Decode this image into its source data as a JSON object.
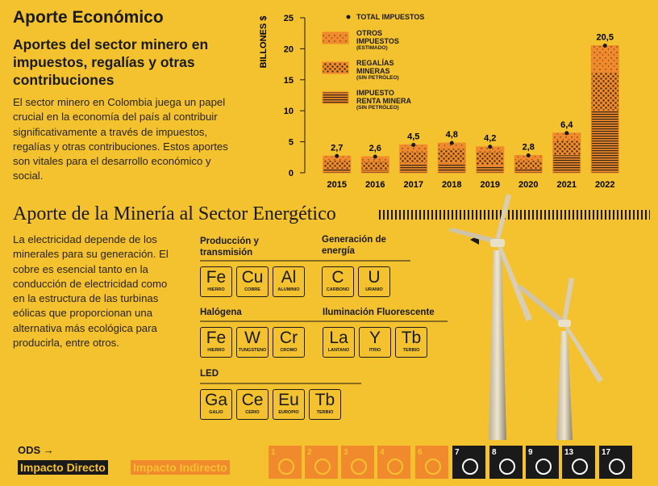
{
  "economic": {
    "title": "Aporte Económico",
    "subtitle": "Aportes del sector minero en impuestos, regalías y otras contribuciones",
    "text": "El sector minero en Colombia juega un papel crucial en la economía del país al contribuir significativamente a través de impuestos, regalías y otras contribuciones. Estos aportes son vitales para el desarrollo económico y social."
  },
  "chart_data": {
    "type": "stacked-bar",
    "y_label": "BILLONES $",
    "categories": [
      "2015",
      "2016",
      "2017",
      "2018",
      "2019",
      "2020",
      "2021",
      "2022"
    ],
    "ylim": [
      0,
      25
    ],
    "yticks": [
      0,
      5,
      10,
      15,
      20,
      25
    ],
    "series": [
      {
        "name": "IMPUESTO RENTA MINERA",
        "note": "(SIN PETRÓLEO)",
        "color": "#f08a2c",
        "pattern": "hatch",
        "values": [
          0.6,
          0.5,
          1.5,
          1.6,
          1.2,
          0.6,
          2.9,
          10.0
        ]
      },
      {
        "name": "REGALÍAS MINERAS",
        "note": "(SIN PETRÓLEO)",
        "color": "#f08a2c",
        "pattern": "dots",
        "values": [
          1.4,
          1.4,
          2.0,
          2.3,
          2.3,
          1.4,
          2.3,
          6.3
        ]
      },
      {
        "name": "OTROS IMPUESTOS",
        "note": "(ESTIMADO)",
        "color": "#f08a2c",
        "pattern": "sparse",
        "values": [
          0.7,
          0.7,
          1.0,
          0.9,
          0.7,
          0.8,
          1.2,
          4.2
        ]
      }
    ],
    "totals": {
      "name": "TOTAL IMPUESTOS",
      "color": "#1a1a1a",
      "values": [
        2.7,
        2.6,
        4.5,
        4.8,
        4.2,
        2.8,
        6.4,
        20.5
      ],
      "value_labels": [
        "2,7",
        "2,6",
        "4,5",
        "4,8",
        "4,2",
        "2,8",
        "6,4",
        "20,5"
      ]
    }
  },
  "energy": {
    "title": "Aporte de la Minería al Sector Energético",
    "text": "La electricidad depende de los minerales para su generación. El cobre es esencial tanto en la conducción de electricidad como en la estructura de las turbinas eólicas que proporcionan una alternativa más ecológica para producirla, entre otros.",
    "groups": [
      {
        "title": "Producción y transmisión",
        "elements": [
          {
            "symbol": "Fe",
            "name": "HIERRO"
          },
          {
            "symbol": "Cu",
            "name": "COBRE"
          },
          {
            "symbol": "Al",
            "name": "ALUMINIO"
          }
        ]
      },
      {
        "title": "Generación de energía",
        "elements": [
          {
            "symbol": "C",
            "name": "CARBONO"
          },
          {
            "symbol": "U",
            "name": "URANIO"
          }
        ]
      },
      {
        "title": "Halógena",
        "elements": [
          {
            "symbol": "Fe",
            "name": "HIERRO"
          },
          {
            "symbol": "W",
            "name": "TUNGSTENO"
          },
          {
            "symbol": "Cr",
            "name": "CROMO"
          }
        ]
      },
      {
        "title": "Iluminación Fluorescente",
        "elements": [
          {
            "symbol": "La",
            "name": "LANTANO"
          },
          {
            "symbol": "Y",
            "name": "ITRIO"
          },
          {
            "symbol": "Tb",
            "name": "TERBIO"
          }
        ]
      },
      {
        "title": "LED",
        "elements": [
          {
            "symbol": "Ga",
            "name": "GALIO"
          },
          {
            "symbol": "Ce",
            "name": "CERIO"
          },
          {
            "symbol": "Eu",
            "name": "EUROPIO"
          },
          {
            "symbol": "Tb",
            "name": "TERBIO"
          }
        ]
      }
    ]
  },
  "ods": {
    "label": "ODS →",
    "direct": "Impacto Directo",
    "indirect": "Impacto Indirecto",
    "goals": [
      {
        "number": 1,
        "impact": "indirect"
      },
      {
        "number": 2,
        "impact": "indirect"
      },
      {
        "number": 3,
        "impact": "indirect"
      },
      {
        "number": 4,
        "impact": "indirect"
      },
      {
        "number": 6,
        "impact": "indirect"
      },
      {
        "number": 7,
        "impact": "direct"
      },
      {
        "number": 8,
        "impact": "direct"
      },
      {
        "number": 9,
        "impact": "direct"
      },
      {
        "number": 13,
        "impact": "direct"
      },
      {
        "number": 17,
        "impact": "direct"
      }
    ]
  }
}
